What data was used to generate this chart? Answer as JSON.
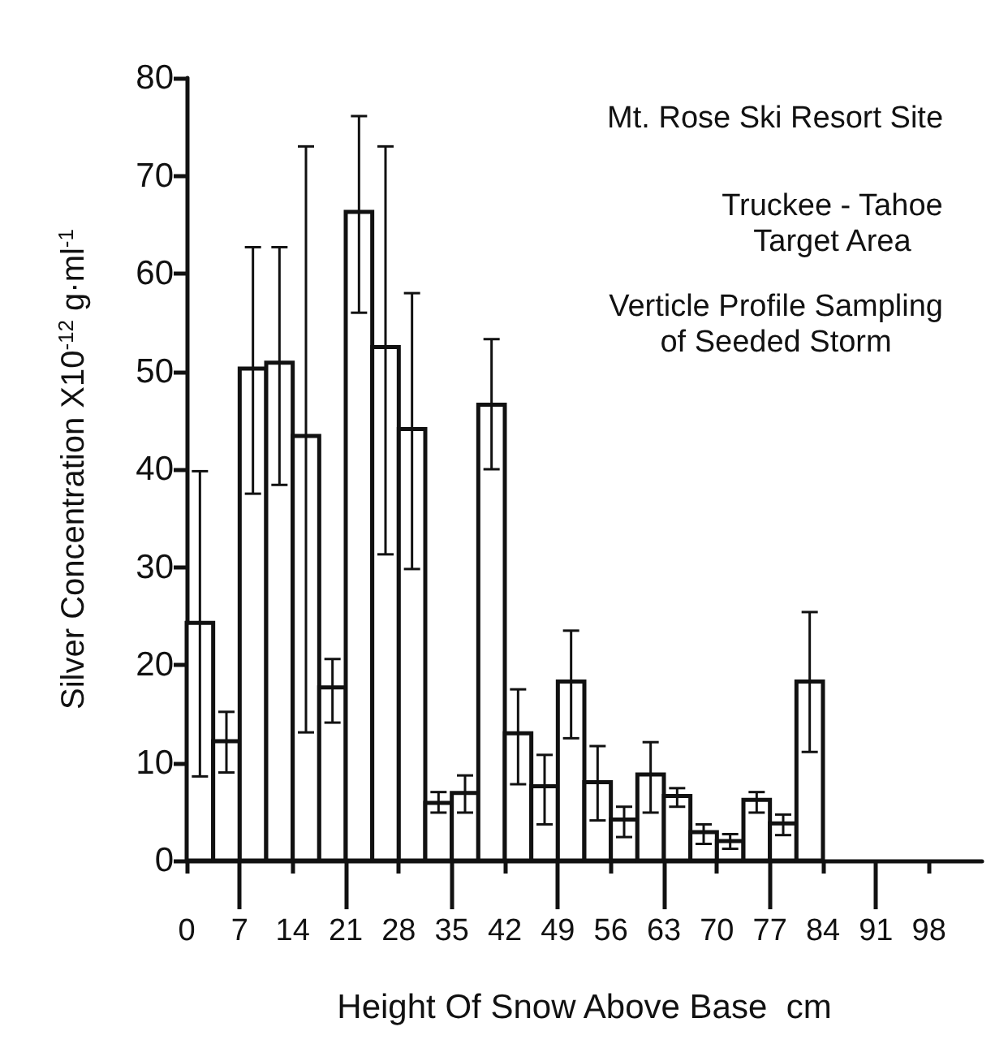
{
  "chart_data": {
    "type": "histogram",
    "xlabel": "Height Of Snow Above Base  cm",
    "ylabel": "Silver Concentration X10$^{-12}$ g·ml$^{-1}$",
    "annotations": [
      "Mt. Rose Ski Resort Site",
      "Truckee - Tahoe\nTarget Area",
      "Verticle Profile Sampling\nof Seeded Storm"
    ],
    "bins": [
      0,
      3.5,
      7,
      10.5,
      14,
      17.5,
      21,
      24.5,
      28,
      31.5,
      35,
      38.5,
      42,
      45.5,
      49,
      52.5,
      56,
      59.5,
      63,
      66.5,
      70,
      73.5,
      77,
      80.5,
      84
    ],
    "values": [
      24.3,
      12.2,
      50.3,
      50.9,
      43.4,
      17.7,
      66.3,
      52.5,
      44.1,
      5.9,
      6.9,
      46.6,
      13,
      7.6,
      18.3,
      8,
      4.2,
      8.8,
      6.6,
      2.9,
      2,
      6.2,
      3.8,
      18.3
    ],
    "errors": [
      [
        8.6,
        39.8
      ],
      [
        9,
        15.2
      ],
      [
        37.5,
        62.7
      ],
      [
        38.4,
        62.7
      ],
      [
        13.1,
        73
      ],
      [
        14.1,
        20.6
      ],
      [
        56,
        76.1
      ],
      [
        31.3,
        73
      ],
      [
        29.8,
        58
      ],
      [
        4.9,
        7
      ],
      [
        4.9,
        8.7
      ],
      [
        40,
        53.3
      ],
      [
        7.8,
        17.5
      ],
      [
        3.7,
        10.8
      ],
      [
        12.5,
        23.5
      ],
      [
        4.1,
        11.7
      ],
      [
        2.4,
        5.5
      ],
      [
        4.9,
        12.1
      ],
      [
        5.5,
        7.4
      ],
      [
        1.7,
        3.7
      ],
      [
        1.2,
        2.7
      ],
      [
        4.9,
        7
      ],
      [
        2.6,
        4.7
      ],
      [
        11.1,
        25.4
      ]
    ],
    "color": "#ffffff",
    "xlim": [
      0,
      105
    ],
    "xticks": [
      0,
      7,
      14,
      21,
      28,
      35,
      42,
      49,
      56,
      63,
      70,
      77,
      84,
      91,
      98
    ],
    "ylim": [
      0,
      80
    ],
    "yticks": [
      0,
      10,
      20,
      30,
      40,
      50,
      60,
      70,
      80
    ],
    "grid": false
  }
}
